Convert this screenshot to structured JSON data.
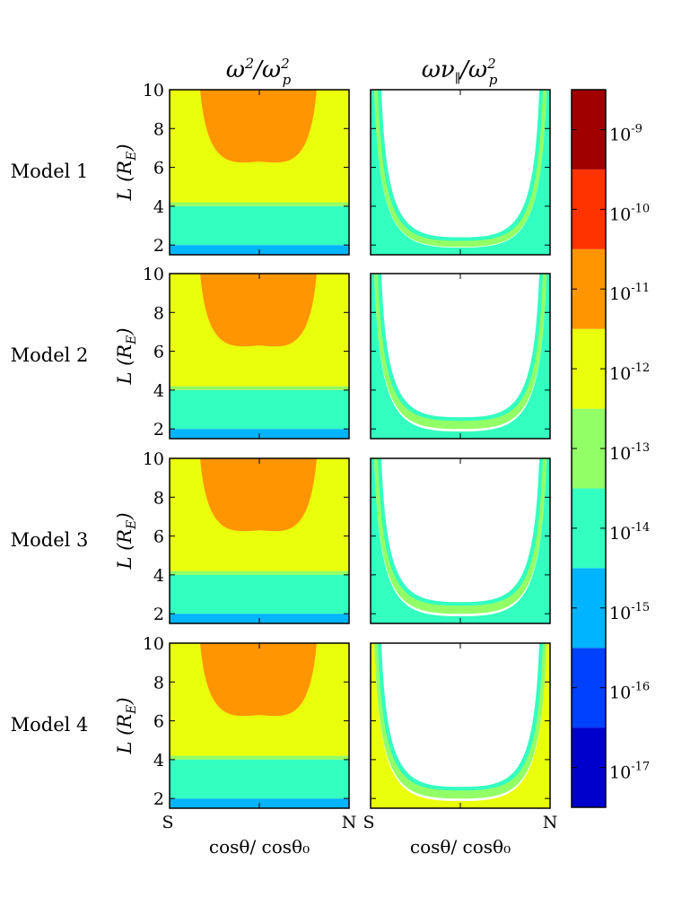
{
  "chart_data": {
    "type": "heatmap",
    "column_titles": [
      "ω²/ω_p²",
      "ων_∥/ω_p²"
    ],
    "row_labels": [
      "Model 1",
      "Model 2",
      "Model 3",
      "Model 4"
    ],
    "ylabel": "L  (R_E)",
    "xlabel": "cosθ/ cosθ₀",
    "xticks": [
      "S",
      "N"
    ],
    "yticks": [
      "2",
      "4",
      "6",
      "8",
      "10"
    ],
    "ylim": [
      1.5,
      10
    ],
    "colorbar": {
      "scale": "log",
      "range_exponents": [
        -17.5,
        -8.5
      ],
      "colors": [
        "#0000cd",
        "#0040ff",
        "#00b4ff",
        "#33ffc0",
        "#92ff66",
        "#eaff0c",
        "#ff9500",
        "#ff3300",
        "#a00000"
      ],
      "tick_labels": [
        "10^{-9}",
        "10^{-10}",
        "10^{-11}",
        "10^{-12}",
        "10^{-13}",
        "10^{-14}",
        "10^{-15}",
        "10^{-16}",
        "10^{-17}"
      ],
      "tick_exponents": [
        -9,
        -10,
        -11,
        -12,
        -13,
        -14,
        -15,
        -16,
        -17
      ]
    },
    "left_panels": {
      "bands_by_L": [
        {
          "L_from": 1.5,
          "L_to": 2.0,
          "level": "10^{-15}"
        },
        {
          "L_from": 2.0,
          "L_to": 4.0,
          "level": "10^{-14}"
        },
        {
          "L_from": 4.0,
          "L_to": 4.2,
          "level": "10^{-13}"
        },
        {
          "L_from": 4.2,
          "L_to": 10.0,
          "level": "10^{-12}"
        }
      ],
      "dome_level": "10^{-11}",
      "dome_min_L": 6.3
    },
    "right_panels": [
      {
        "model": "Model 1",
        "blank_min_L": 2.4,
        "inner_level": "10^{-13}",
        "outer_level": "10^{-14}"
      },
      {
        "model": "Model 2",
        "blank_min_L": 2.6,
        "inner_level": "10^{-13}",
        "outer_level": "10^{-14}"
      },
      {
        "model": "Model 3",
        "blank_min_L": 2.6,
        "inner_level": "10^{-13}",
        "outer_level": "10^{-14}"
      },
      {
        "model": "Model 4",
        "blank_min_L": 2.6,
        "inner_level": "10^{-13}",
        "outer_level": "10^{-12}"
      }
    ]
  }
}
